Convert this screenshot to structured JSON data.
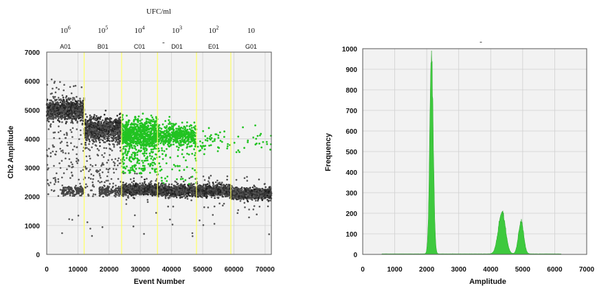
{
  "chart_data": [
    {
      "type": "scatter",
      "title": "",
      "xlabel": "Event Number",
      "ylabel": "Ch2 Amplitude",
      "xlim": [
        0,
        72000
      ],
      "ylim": [
        0,
        7000
      ],
      "xticks": [
        "0",
        "10000",
        "20000",
        "30000",
        "40000",
        "50000",
        "60000",
        "70000"
      ],
      "xtick_values": [
        0,
        10000,
        20000,
        30000,
        40000,
        50000,
        60000,
        70000
      ],
      "yticks": [
        "0",
        "1000",
        "2000",
        "3000",
        "4000",
        "5000",
        "6000",
        "7000"
      ],
      "ytick_values": [
        0,
        1000,
        2000,
        3000,
        4000,
        5000,
        6000,
        7000
      ],
      "top_axis_label": "UFC/ml",
      "concentrations": [
        {
          "base": "10",
          "exp": "6"
        },
        {
          "base": "10",
          "exp": "5"
        },
        {
          "base": "10",
          "exp": "4"
        },
        {
          "base": "10",
          "exp": "3"
        },
        {
          "base": "10",
          "exp": "2"
        },
        {
          "base": "10",
          "exp": ""
        }
      ],
      "dash_mark": "-",
      "wells": [
        "A01",
        "B01",
        "C01",
        "D01",
        "E01",
        "G01"
      ],
      "well_ranges": [
        [
          0,
          12000
        ],
        [
          12000,
          24000
        ],
        [
          24000,
          35500
        ],
        [
          35500,
          48000
        ],
        [
          48000,
          59000
        ],
        [
          59000,
          72000
        ]
      ],
      "well_separators": [
        12000,
        24000,
        35500,
        48000,
        59000
      ],
      "negative_cluster_centers": [
        5000,
        4350,
        2250,
        2200,
        2200,
        2100
      ],
      "positive_cluster_centers": [
        null,
        null,
        4200,
        4100,
        3900,
        3900
      ],
      "colors": {
        "negative": "#2a2a2a",
        "positive": "#22c322",
        "separator": "#ffff66",
        "grid": "#d0d0d0",
        "plot_bg": "#f2f2f2"
      },
      "grid": true
    },
    {
      "type": "area",
      "title": "",
      "title_mark": "-",
      "xlabel": "Amplitude",
      "ylabel": "Frequency",
      "xlim": [
        0,
        7000
      ],
      "ylim": [
        0,
        1000
      ],
      "xticks": [
        "0",
        "1000",
        "2000",
        "3000",
        "4000",
        "5000",
        "6000",
        "7000"
      ],
      "xtick_values": [
        0,
        1000,
        2000,
        3000,
        4000,
        5000,
        6000,
        7000
      ],
      "yticks": [
        "0",
        "100",
        "200",
        "300",
        "400",
        "500",
        "600",
        "700",
        "800",
        "900",
        "1000"
      ],
      "ytick_values": [
        0,
        100,
        200,
        300,
        400,
        500,
        600,
        700,
        800,
        900,
        1000
      ],
      "peaks": [
        {
          "center": 2150,
          "height": 950
        },
        {
          "center": 4350,
          "height": 210
        },
        {
          "center": 4950,
          "height": 160
        }
      ],
      "colors": {
        "fill": "#3ec93e",
        "grid": "#cfcfcf",
        "plot_bg": "#f2f2f2"
      },
      "grid": true
    }
  ]
}
